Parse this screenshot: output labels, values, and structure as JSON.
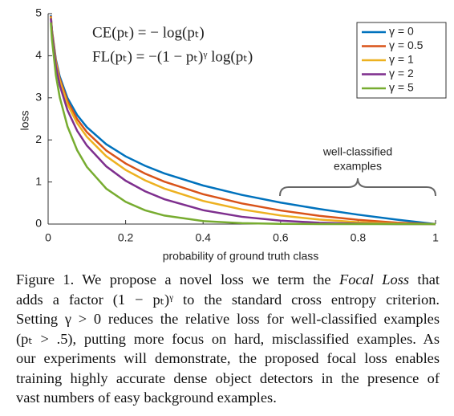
{
  "chart_data": {
    "type": "line",
    "annotations": [
      "CE(pₜ) = − log(pₜ)",
      "FL(pₜ) = −(1 − pₜ)ᵞ log(pₜ)"
    ],
    "brace_label": [
      "well-classified",
      "examples"
    ],
    "xlabel": "probability of ground truth class",
    "ylabel": "loss",
    "x": [
      0.007,
      0.01,
      0.02,
      0.03,
      0.05,
      0.075,
      0.1,
      0.15,
      0.2,
      0.25,
      0.3,
      0.4,
      0.5,
      0.6,
      0.7,
      0.8,
      0.9,
      1.0
    ],
    "series": [
      {
        "name": "γ = 0",
        "color": "#0072bd",
        "values": [
          4.962,
          4.605,
          3.912,
          3.507,
          2.996,
          2.59,
          2.303,
          1.897,
          1.609,
          1.386,
          1.204,
          0.916,
          0.693,
          0.511,
          0.357,
          0.223,
          0.105,
          0
        ]
      },
      {
        "name": "γ = 0.5",
        "color": "#d95319",
        "values": [
          4.945,
          4.582,
          3.873,
          3.454,
          2.921,
          2.492,
          2.185,
          1.749,
          1.439,
          1.2,
          1.008,
          0.71,
          0.49,
          0.323,
          0.196,
          0.1,
          0.033,
          0
        ]
      },
      {
        "name": "γ = 1",
        "color": "#edb120",
        "values": [
          4.927,
          4.559,
          3.834,
          3.402,
          2.846,
          2.396,
          2.073,
          1.612,
          1.287,
          1.04,
          0.843,
          0.55,
          0.347,
          0.204,
          0.107,
          0.045,
          0.011,
          0
        ]
      },
      {
        "name": "γ = 2",
        "color": "#7e2f8e",
        "values": [
          4.893,
          4.513,
          3.756,
          3.3,
          2.704,
          2.216,
          1.865,
          1.371,
          1.03,
          0.78,
          0.59,
          0.33,
          0.173,
          0.082,
          0.032,
          0.009,
          0.001,
          0
        ]
      },
      {
        "name": "γ = 5",
        "color": "#77ac30",
        "values": [
          4.788,
          4.38,
          3.536,
          3.012,
          2.319,
          1.753,
          1.359,
          0.842,
          0.528,
          0.328,
          0.202,
          0.071,
          0.022,
          0.005,
          0.001,
          0,
          0,
          0
        ]
      }
    ],
    "xlim": [
      0,
      1
    ],
    "xticks": [
      0,
      0.2,
      0.4,
      0.6,
      0.8,
      1
    ],
    "ylim": [
      0,
      5
    ],
    "yticks": [
      0,
      1,
      2,
      3,
      4,
      5
    ],
    "legend": "upper right"
  },
  "caption": {
    "lines": [
      [
        "Figure 1. We propose a novel loss we term the ",
        "Focal Loss",
        " that"
      ],
      [
        "adds a factor (1 − pₜ)ᵞ to the standard cross entropy criterion."
      ],
      [
        "Setting γ > 0 reduces the relative loss for well-classified examples"
      ],
      [
        "(pₜ > .5), putting more focus on hard, misclassified examples. As"
      ],
      [
        "our experiments will demonstrate, the proposed focal loss enables"
      ],
      [
        "training highly accurate dense object detectors in the presence of"
      ],
      [
        "vast numbers of easy background examples."
      ]
    ]
  }
}
